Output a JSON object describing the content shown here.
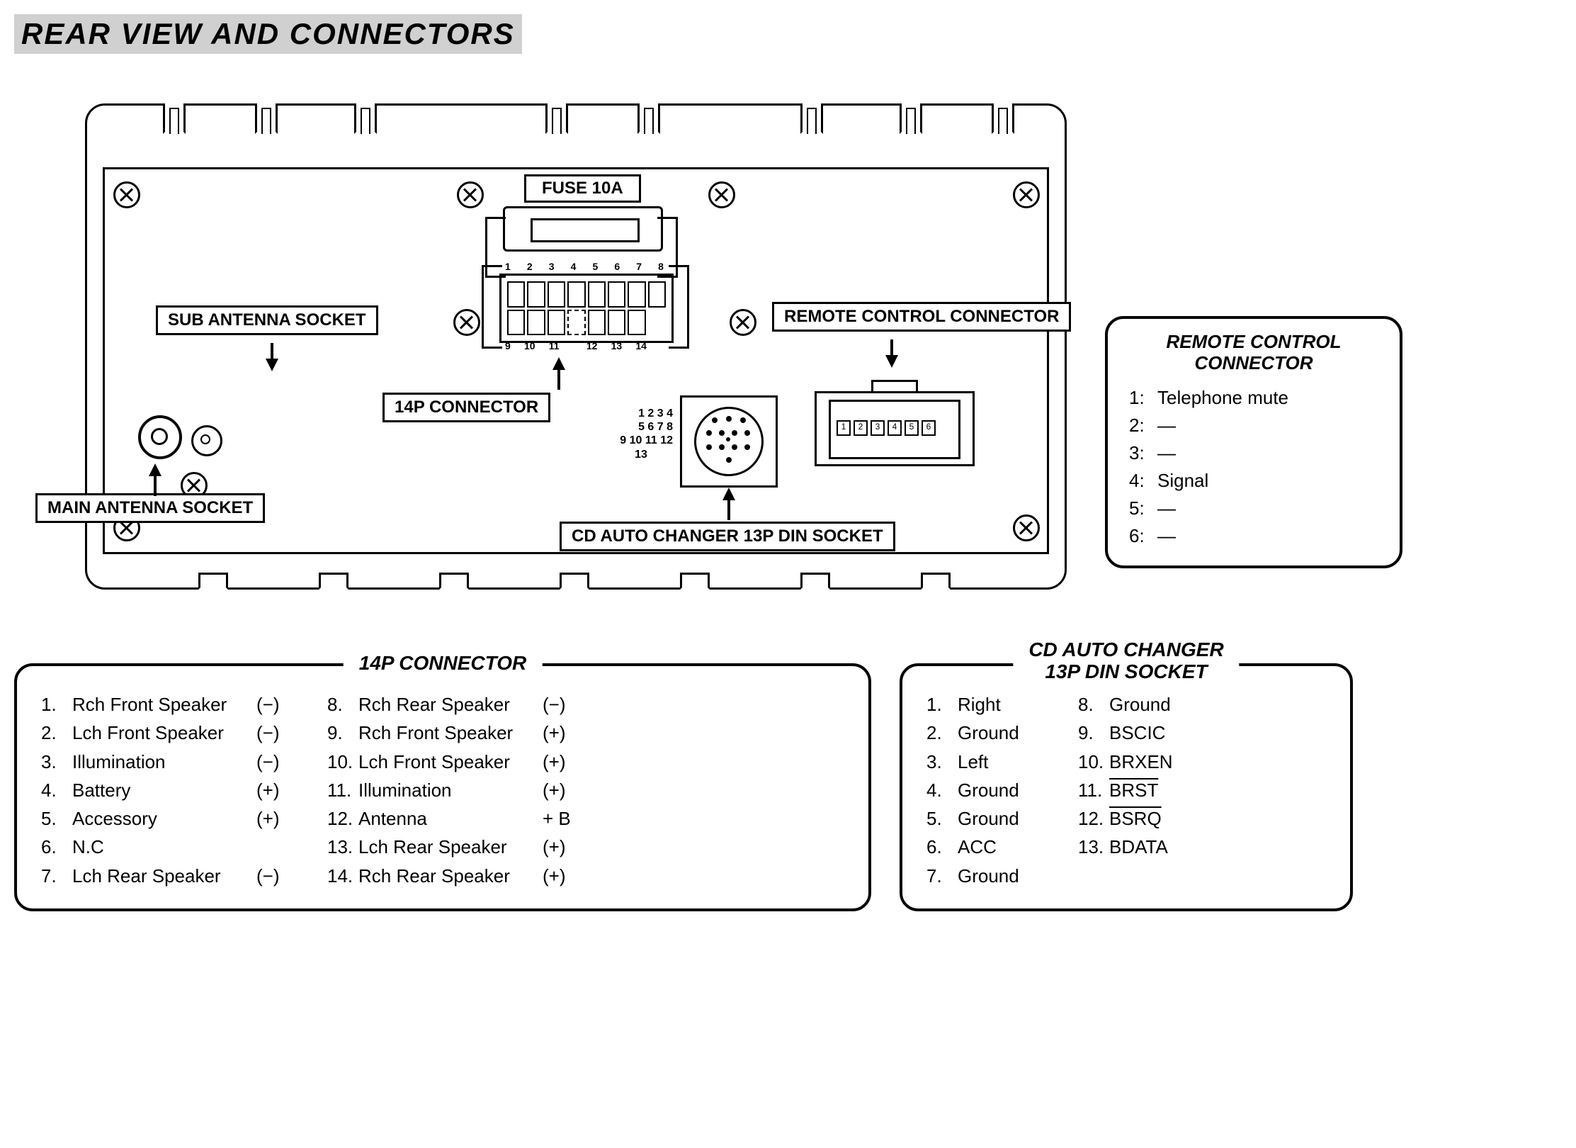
{
  "title": "REAR VIEW AND CONNECTORS",
  "colors": {
    "background": "#ffffff",
    "line": "#000000"
  },
  "diagram_labels": {
    "fuse": "FUSE 10A",
    "sub_antenna": "SUB ANTENNA SOCKET",
    "main_antenna": "MAIN ANTENNA SOCKET",
    "conn14p": "14P CONNECTOR",
    "remote": "REMOTE CONTROL CONNECTOR",
    "cd_din": "CD AUTO CHANGER 13P DIN SOCKET"
  },
  "conn14p_pin_labels_top": [
    "1",
    "2",
    "3",
    "4",
    "5",
    "6",
    "7",
    "8"
  ],
  "conn14p_pin_labels_bot": [
    "9",
    "10",
    "11",
    "",
    "12",
    "13",
    "14"
  ],
  "remote_pin_labels": [
    "1",
    "2",
    "3",
    "4",
    "5",
    "6"
  ],
  "din_number_rows": [
    "1  2  3  4",
    "5  6  7  8",
    "9 10 11 12",
    "13"
  ],
  "remote_panel": {
    "title_line1": "REMOTE CONTROL",
    "title_line2": "CONNECTOR",
    "items": [
      {
        "n": "1:",
        "t": "Telephone mute"
      },
      {
        "n": "2:",
        "t": "—"
      },
      {
        "n": "3:",
        "t": "—"
      },
      {
        "n": "4:",
        "t": "Signal"
      },
      {
        "n": "5:",
        "t": "—"
      },
      {
        "n": "6:",
        "t": "—"
      }
    ]
  },
  "table_14p": {
    "title": "14P CONNECTOR",
    "left": [
      {
        "n": "1.",
        "t": "Rch Front Speaker",
        "p": "(−)"
      },
      {
        "n": "2.",
        "t": "Lch Front Speaker",
        "p": "(−)"
      },
      {
        "n": "3.",
        "t": "Illumination",
        "p": "(−)"
      },
      {
        "n": "4.",
        "t": "Battery",
        "p": "(+)"
      },
      {
        "n": "5.",
        "t": "Accessory",
        "p": "(+)"
      },
      {
        "n": "6.",
        "t": "N.C",
        "p": ""
      },
      {
        "n": "7.",
        "t": "Lch Rear Speaker",
        "p": "(−)"
      }
    ],
    "right": [
      {
        "n": "8.",
        "t": "Rch Rear Speaker",
        "p": "(−)"
      },
      {
        "n": "9.",
        "t": "Rch Front Speaker",
        "p": "(+)"
      },
      {
        "n": "10.",
        "t": "Lch Front Speaker",
        "p": "(+)"
      },
      {
        "n": "11.",
        "t": "Illumination",
        "p": "(+)"
      },
      {
        "n": "12.",
        "t": "Antenna",
        "p": "+ B"
      },
      {
        "n": "13.",
        "t": "Lch Rear Speaker",
        "p": "(+)"
      },
      {
        "n": "14.",
        "t": "Rch Rear Speaker",
        "p": "(+)"
      }
    ]
  },
  "table_din": {
    "title_line1": "CD AUTO CHANGER",
    "title_line2": "13P DIN SOCKET",
    "left": [
      {
        "n": "1.",
        "t": "Right"
      },
      {
        "n": "2.",
        "t": "Ground"
      },
      {
        "n": "3.",
        "t": "Left"
      },
      {
        "n": "4.",
        "t": "Ground"
      },
      {
        "n": "5.",
        "t": "Ground"
      },
      {
        "n": "6.",
        "t": "ACC"
      },
      {
        "n": "7.",
        "t": "Ground"
      }
    ],
    "right": [
      {
        "n": "8.",
        "t": "Ground",
        "ov": false
      },
      {
        "n": "9.",
        "t": "BSCIC",
        "ov": false
      },
      {
        "n": "10.",
        "t": "BRXEN",
        "ov": false
      },
      {
        "n": "11.",
        "t": "BRST",
        "ov": true
      },
      {
        "n": "12.",
        "t": "BSRQ",
        "ov": true
      },
      {
        "n": "13.",
        "t": "BDATA",
        "ov": false
      }
    ]
  }
}
